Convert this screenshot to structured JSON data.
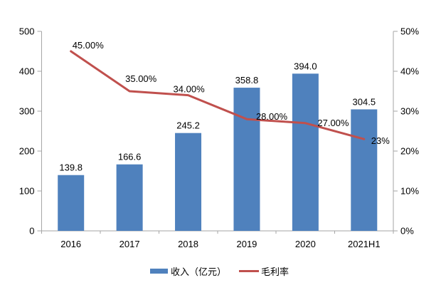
{
  "chart_data": {
    "type": "bar+line",
    "title": "",
    "categories": [
      "2016",
      "2017",
      "2018",
      "2019",
      "2020",
      "2021H1"
    ],
    "series": [
      {
        "name": "收入（亿元）",
        "type": "bar",
        "axis": "left",
        "color": "#4f81bd",
        "values": [
          139.8,
          166.6,
          245.2,
          358.8,
          394.0,
          304.5
        ],
        "labels": [
          "139.8",
          "166.6",
          "245.2",
          "358.8",
          "394.0",
          "304.5"
        ]
      },
      {
        "name": "毛利率",
        "type": "line",
        "axis": "right",
        "color": "#c0504d",
        "values": [
          45,
          35,
          34,
          28,
          27,
          23
        ],
        "labels": [
          "45.00%",
          "35.00%",
          "34.00%",
          "28.00%",
          "27.00%",
          "23%"
        ]
      }
    ],
    "left_axis": {
      "min": 0,
      "max": 500,
      "step": 100,
      "tick_labels": [
        "0",
        "100",
        "200",
        "300",
        "400",
        "500"
      ]
    },
    "right_axis": {
      "min": 0,
      "max": 50,
      "step": 10,
      "tick_labels": [
        "0%",
        "10%",
        "20%",
        "30%",
        "40%",
        "50%"
      ]
    },
    "grid": false,
    "legend_position": "bottom",
    "axis_color": "#a6a6a6",
    "text_color": "#000000",
    "background": "#ffffff"
  }
}
